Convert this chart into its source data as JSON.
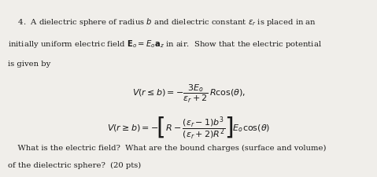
{
  "background_color": "#f0eeea",
  "text_color": "#1a1a1a",
  "font_size_body": 7.2,
  "font_size_eq": 8.0,
  "line1": "    4.  A dielectric sphere of radius $b$ and dielectric constant $\\epsilon_r$ is placed in an",
  "line2": "initially uniform electric field $\\mathbf{E}_o = E_o\\mathbf{a}_z$ in air.  Show that the electric potential",
  "line3": "is given by",
  "eq1": "$V(r \\leq b) = -\\dfrac{3E_o}{\\epsilon_r + 2}\\,R\\mathrm{cos}(\\theta),$",
  "eq2": "$V(r \\geq b) = -\\!\\left[R - \\dfrac{(\\epsilon_r - 1)b^3}{(\\epsilon_r + 2)R^2}\\right]\\!E_o\\mathrm{cos}(\\theta)$",
  "line4": "    What is the electric field?  What are the bound charges (surface and volume)",
  "line5": "of the dielectric sphere?  (20 pts)"
}
